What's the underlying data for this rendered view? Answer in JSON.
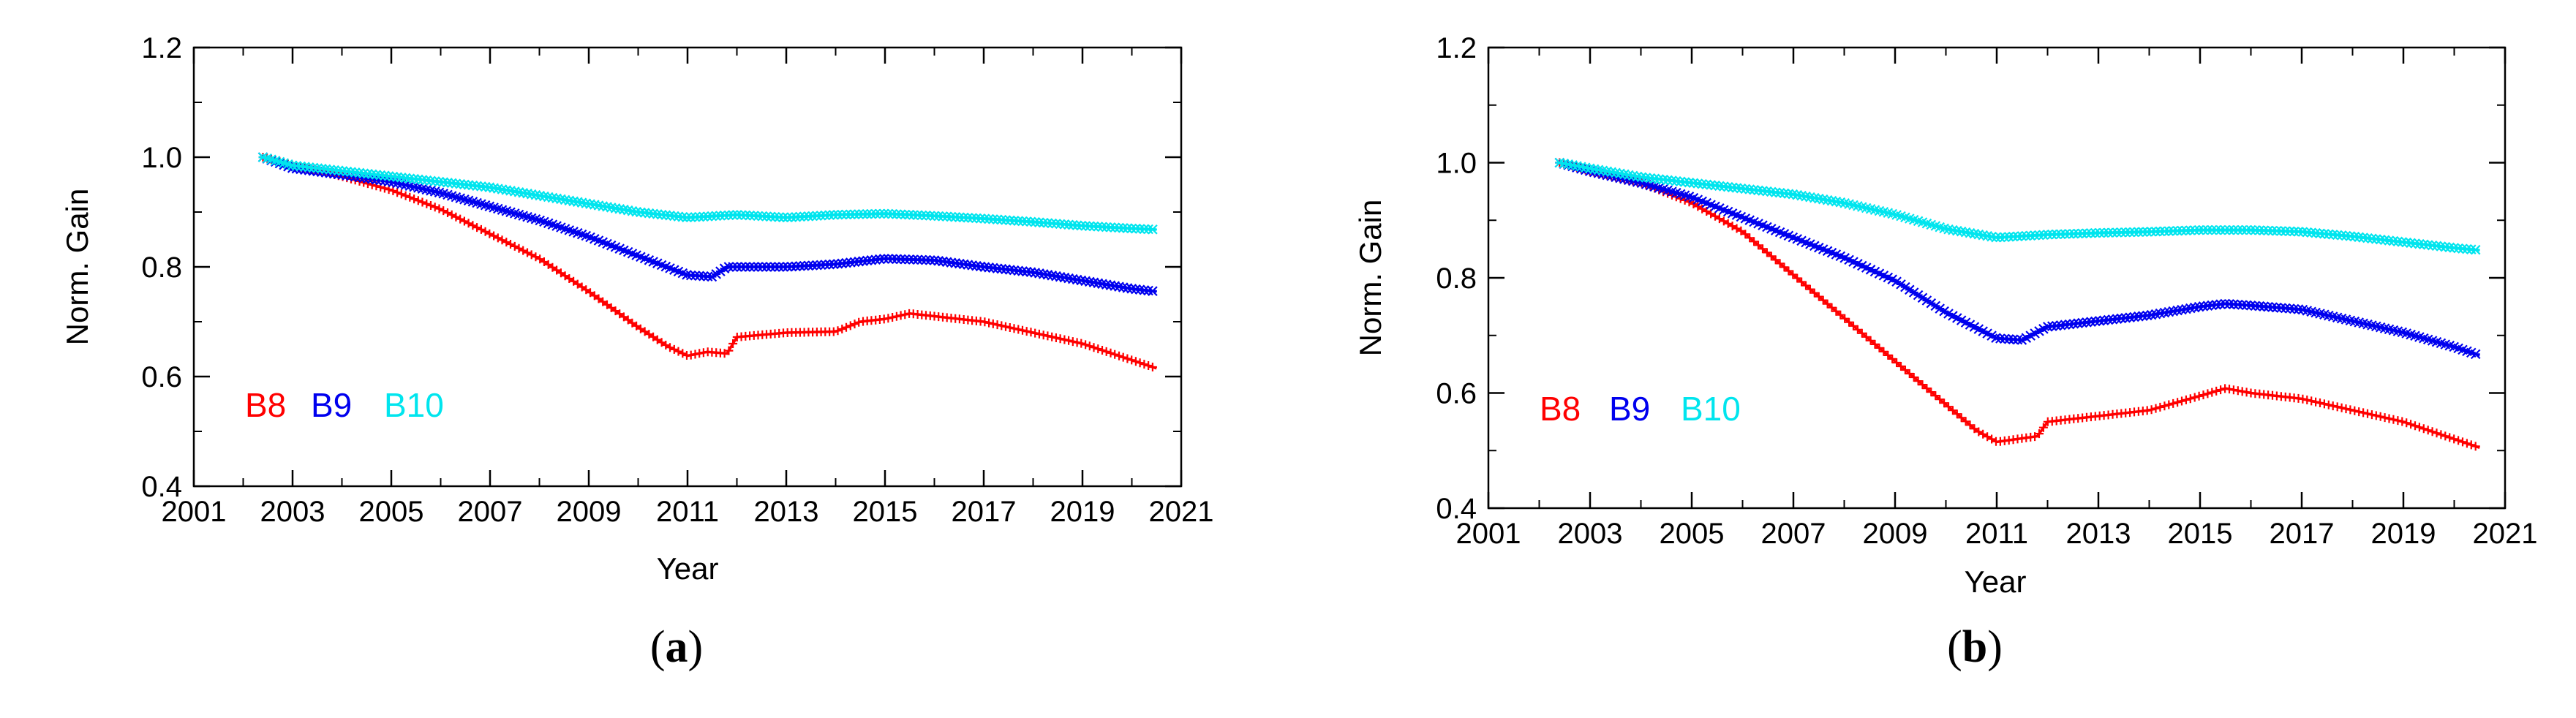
{
  "chart_data": [
    {
      "type": "line",
      "panel_label": "a",
      "xlabel": "Year",
      "ylabel": "Norm. Gain",
      "xlim": [
        2001,
        2021
      ],
      "ylim": [
        0.4,
        1.2
      ],
      "x_ticks": [
        "2001",
        "2003",
        "2005",
        "2007",
        "2009",
        "2011",
        "2013",
        "2015",
        "2017",
        "2019",
        "2021"
      ],
      "y_ticks": [
        "0.4",
        "0.6",
        "0.8",
        "1.0",
        "1.2"
      ],
      "series": [
        {
          "name": "B8",
          "color": "#ff0000",
          "marker": "plus",
          "x": [
            2002.4,
            2003,
            2004,
            2005,
            2006,
            2007,
            2008,
            2009,
            2010,
            2010.6,
            2011,
            2011.4,
            2011.8,
            2012,
            2013,
            2014,
            2014.5,
            2015,
            2015.5,
            2016,
            2017,
            2018,
            2019,
            2020,
            2020.5
          ],
          "y": [
            1.0,
            0.985,
            0.965,
            0.94,
            0.905,
            0.86,
            0.815,
            0.755,
            0.69,
            0.655,
            0.638,
            0.645,
            0.642,
            0.672,
            0.68,
            0.682,
            0.7,
            0.705,
            0.715,
            0.71,
            0.7,
            0.68,
            0.66,
            0.63,
            0.615
          ]
        },
        {
          "name": "B9",
          "color": "#0000ee",
          "marker": "star",
          "x": [
            2002.4,
            2003,
            2004,
            2005,
            2006,
            2007,
            2008,
            2009,
            2010,
            2011,
            2011.5,
            2011.8,
            2012,
            2013,
            2014,
            2015,
            2016,
            2017,
            2018,
            2019,
            2020,
            2020.5
          ],
          "y": [
            1.0,
            0.98,
            0.968,
            0.955,
            0.935,
            0.91,
            0.885,
            0.855,
            0.82,
            0.785,
            0.782,
            0.8,
            0.8,
            0.8,
            0.805,
            0.815,
            0.812,
            0.8,
            0.79,
            0.775,
            0.76,
            0.755
          ],
          "legend_label": "B9"
        },
        {
          "name": "B10",
          "color": "#00e5ee",
          "marker": "star",
          "x": [
            2002.4,
            2003,
            2004,
            2005,
            2006,
            2007,
            2008,
            2009,
            2010,
            2011,
            2012,
            2013,
            2014,
            2015,
            2016,
            2017,
            2018,
            2019,
            2020,
            2020.5
          ],
          "y": [
            1.0,
            0.985,
            0.975,
            0.965,
            0.955,
            0.945,
            0.93,
            0.915,
            0.9,
            0.89,
            0.895,
            0.89,
            0.895,
            0.897,
            0.893,
            0.888,
            0.882,
            0.875,
            0.87,
            0.868
          ]
        }
      ],
      "legend": [
        "B8",
        "B9",
        "B10"
      ],
      "legend_placement": "lower-left"
    },
    {
      "type": "line",
      "panel_label": "b",
      "xlabel": "Year",
      "ylabel": "Norm. Gain",
      "xlim": [
        2001,
        2021
      ],
      "ylim": [
        0.4,
        1.2
      ],
      "x_ticks": [
        "2001",
        "2003",
        "2005",
        "2007",
        "2009",
        "2011",
        "2013",
        "2015",
        "2017",
        "2019",
        "2021"
      ],
      "y_ticks": [
        "0.4",
        "0.6",
        "0.8",
        "1.0",
        "1.2"
      ],
      "series": [
        {
          "name": "B8",
          "color": "#ff0000",
          "marker": "plus",
          "x": [
            2002.4,
            2003,
            2004,
            2005,
            2006,
            2007,
            2008,
            2009,
            2010,
            2010.6,
            2011,
            2011.4,
            2011.8,
            2012,
            2013,
            2014,
            2015,
            2015.5,
            2016,
            2017,
            2018,
            2019,
            2020,
            2020.5
          ],
          "y": [
            1.0,
            0.985,
            0.965,
            0.93,
            0.88,
            0.805,
            0.73,
            0.655,
            0.58,
            0.535,
            0.515,
            0.52,
            0.525,
            0.55,
            0.56,
            0.57,
            0.595,
            0.608,
            0.6,
            0.59,
            0.57,
            0.55,
            0.52,
            0.505
          ]
        },
        {
          "name": "B9",
          "color": "#0000ee",
          "marker": "star",
          "x": [
            2002.4,
            2003,
            2004,
            2005,
            2006,
            2007,
            2008,
            2009,
            2010,
            2011,
            2011.5,
            2012,
            2013,
            2014,
            2015,
            2015.5,
            2016,
            2017,
            2018,
            2019,
            2020,
            2020.5
          ],
          "y": [
            1.0,
            0.985,
            0.965,
            0.94,
            0.905,
            0.87,
            0.835,
            0.795,
            0.74,
            0.695,
            0.692,
            0.715,
            0.725,
            0.735,
            0.75,
            0.755,
            0.752,
            0.745,
            0.725,
            0.705,
            0.68,
            0.665
          ]
        },
        {
          "name": "B10",
          "color": "#00e5ee",
          "marker": "star",
          "x": [
            2002.4,
            2003,
            2004,
            2005,
            2006,
            2007,
            2008,
            2009,
            2010,
            2011,
            2012,
            2013,
            2014,
            2015,
            2016,
            2017,
            2018,
            2019,
            2020,
            2020.5
          ],
          "y": [
            1.0,
            0.99,
            0.975,
            0.965,
            0.955,
            0.945,
            0.93,
            0.91,
            0.885,
            0.87,
            0.875,
            0.878,
            0.88,
            0.883,
            0.883,
            0.88,
            0.872,
            0.862,
            0.852,
            0.848
          ]
        }
      ],
      "legend": [
        "B8",
        "B9",
        "B10"
      ],
      "legend_placement": "lower-left"
    }
  ]
}
